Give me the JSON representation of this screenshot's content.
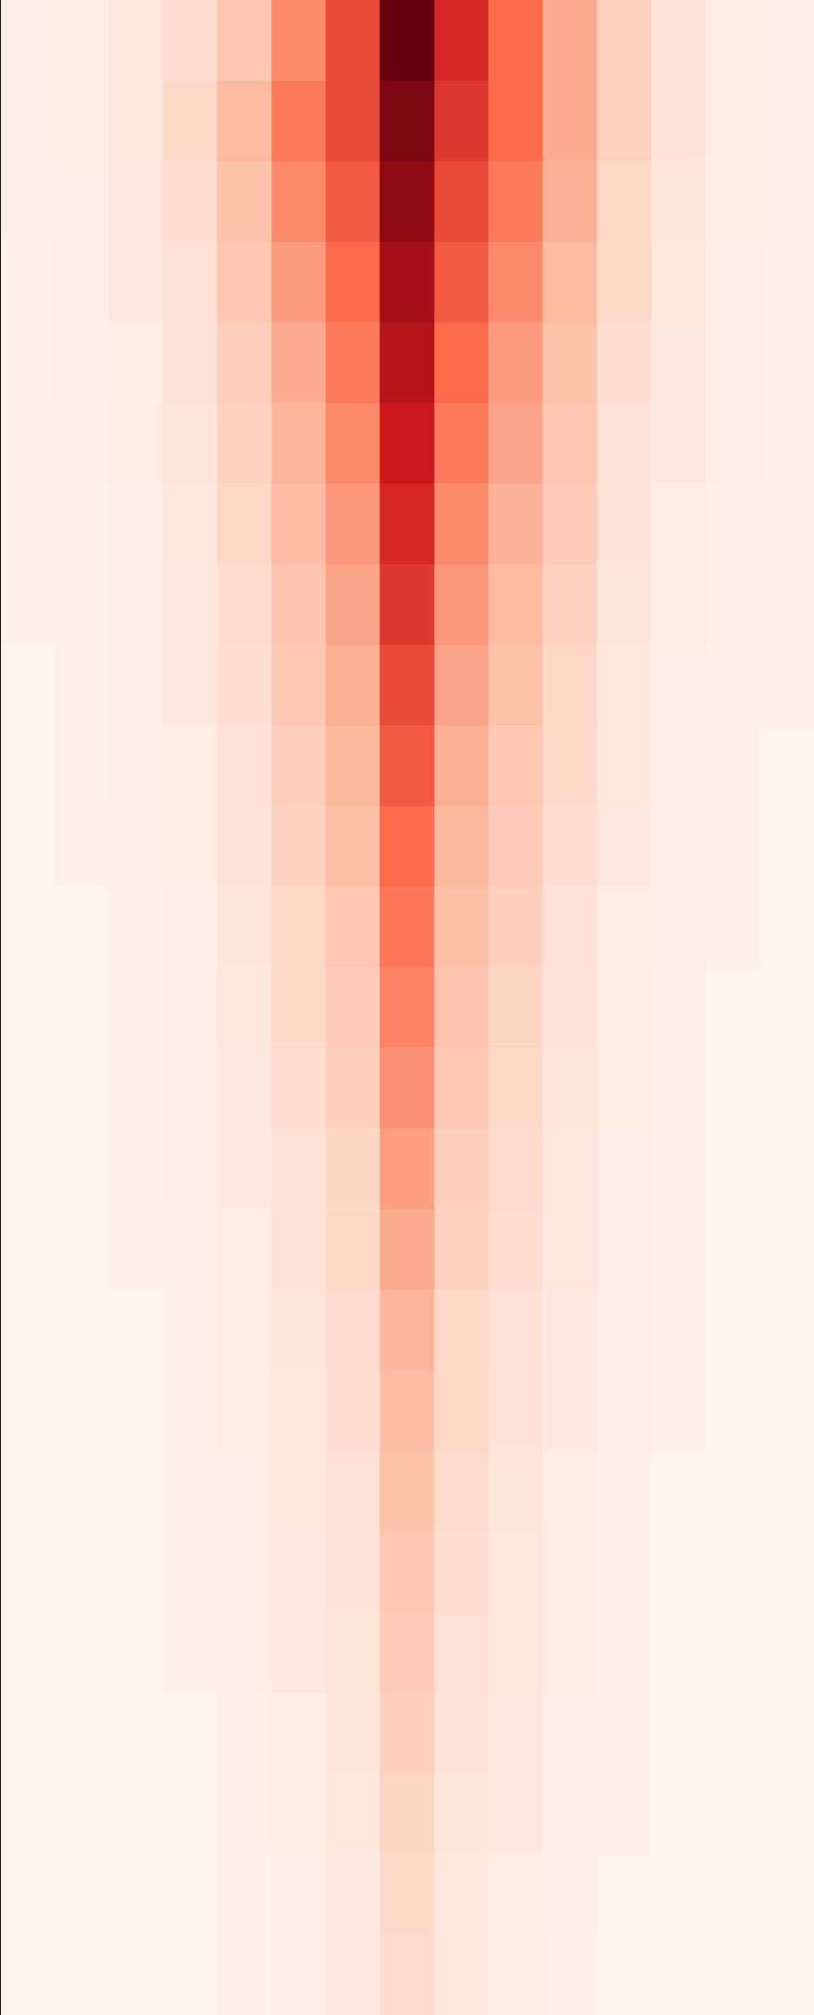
{
  "chart_data": {
    "type": "heatmap",
    "zlim": [
      0,
      10
    ],
    "colors": [
      "#fff5f0",
      "#fcbba1",
      "#fb6a4a",
      "#cb181d",
      "#67000d"
    ],
    "z": [
      [
        0.3,
        0.4,
        0.6,
        1,
        2,
        4,
        6,
        10,
        7,
        5,
        3,
        1.5,
        0.8,
        0.4,
        0.3
      ],
      [
        0.3,
        0.4,
        0.6,
        1.2,
        2.5,
        4.5,
        6,
        9.5,
        6.5,
        5,
        3,
        1.5,
        0.8,
        0.4,
        0.3
      ],
      [
        0.3,
        0.3,
        0.5,
        1,
        2.2,
        4,
        5.5,
        9,
        6,
        4.5,
        2.8,
        1.3,
        0.7,
        0.4,
        0.3
      ],
      [
        0.2,
        0.3,
        0.5,
        0.9,
        2,
        3.5,
        5,
        8.5,
        5.5,
        4,
        2.5,
        1.2,
        0.6,
        0.3,
        0.2
      ],
      [
        0.2,
        0.3,
        0.4,
        0.8,
        1.7,
        3,
        4.5,
        8,
        5,
        3.5,
        2.2,
        1,
        0.5,
        0.3,
        0.2
      ],
      [
        0.2,
        0.2,
        0.4,
        0.7,
        1.5,
        2.7,
        4,
        7.5,
        4.5,
        3.2,
        2,
        0.9,
        0.5,
        0.3,
        0.2
      ],
      [
        0.2,
        0.2,
        0.3,
        0.6,
        1.3,
        2.4,
        3.6,
        7,
        4,
        2.8,
        1.8,
        0.8,
        0.4,
        0.2,
        0.2
      ],
      [
        0.2,
        0.2,
        0.3,
        0.5,
        1.1,
        2.1,
        3.2,
        6.5,
        3.6,
        2.5,
        1.5,
        0.7,
        0.4,
        0.2,
        0.2
      ],
      [
        0.1,
        0.2,
        0.3,
        0.5,
        1,
        1.9,
        2.9,
        6,
        3.2,
        2.2,
        1.3,
        0.6,
        0.3,
        0.2,
        0.2
      ],
      [
        0.1,
        0.2,
        0.3,
        0.4,
        0.9,
        1.7,
        2.6,
        5.5,
        2.9,
        2,
        1.2,
        0.6,
        0.3,
        0.2,
        0.1
      ],
      [
        0.1,
        0.2,
        0.2,
        0.4,
        0.8,
        1.5,
        2.3,
        5,
        2.6,
        1.8,
        1,
        0.5,
        0.3,
        0.2,
        0.1
      ],
      [
        0.1,
        0.1,
        0.2,
        0.3,
        0.7,
        1.3,
        2,
        4.6,
        2.3,
        1.6,
        0.9,
        0.4,
        0.3,
        0.2,
        0.1
      ],
      [
        0.1,
        0.1,
        0.2,
        0.3,
        0.6,
        1.2,
        1.8,
        4.2,
        2.1,
        1.4,
        0.8,
        0.4,
        0.2,
        0.1,
        0.1
      ],
      [
        0.1,
        0.1,
        0.2,
        0.3,
        0.5,
        1,
        1.6,
        3.8,
        1.9,
        1.2,
        0.7,
        0.4,
        0.2,
        0.1,
        0.1
      ],
      [
        0.1,
        0.1,
        0.2,
        0.3,
        0.5,
        0.9,
        1.4,
        3.4,
        1.7,
        1.1,
        0.6,
        0.3,
        0.2,
        0.1,
        0.1
      ],
      [
        0.1,
        0.1,
        0.2,
        0.2,
        0.4,
        0.8,
        1.2,
        3,
        1.5,
        1,
        0.6,
        0.3,
        0.2,
        0.1,
        0.1
      ],
      [
        0.1,
        0.1,
        0.1,
        0.2,
        0.4,
        0.7,
        1.1,
        2.7,
        1.3,
        0.9,
        0.5,
        0.3,
        0.2,
        0.1,
        0.1
      ],
      [
        0.1,
        0.1,
        0.1,
        0.2,
        0.4,
        0.6,
        1,
        2.4,
        1.2,
        0.8,
        0.5,
        0.3,
        0.2,
        0.1,
        0.1
      ],
      [
        0.1,
        0.1,
        0.1,
        0.2,
        0.3,
        0.6,
        0.9,
        2.2,
        1.1,
        0.7,
        0.4,
        0.2,
        0.1,
        0.1,
        0.1
      ],
      [
        0.1,
        0.1,
        0.1,
        0.2,
        0.3,
        0.5,
        0.8,
        2,
        1,
        0.6,
        0.4,
        0.2,
        0.1,
        0.1,
        0.1
      ],
      [
        0.1,
        0.1,
        0.1,
        0.2,
        0.3,
        0.5,
        0.7,
        1.8,
        0.9,
        0.6,
        0.4,
        0.2,
        0.1,
        0.1,
        0.1
      ],
      [
        0.1,
        0.1,
        0.1,
        0.1,
        0.2,
        0.4,
        0.7,
        1.6,
        0.8,
        0.5,
        0.3,
        0.2,
        0.1,
        0.1,
        0.1
      ],
      [
        0.1,
        0.1,
        0.1,
        0.1,
        0.2,
        0.4,
        0.6,
        1.4,
        0.7,
        0.5,
        0.3,
        0.2,
        0.1,
        0.1,
        0.1
      ],
      [
        0.1,
        0.1,
        0.1,
        0.1,
        0.2,
        0.3,
        0.5,
        1.2,
        0.6,
        0.4,
        0.3,
        0.1,
        0.1,
        0.1,
        0.1
      ],
      [
        0.1,
        0.1,
        0.1,
        0.1,
        0.2,
        0.3,
        0.5,
        1.1,
        0.6,
        0.4,
        0.2,
        0.1,
        0.1,
        0.1,
        0.1
      ]
    ]
  }
}
